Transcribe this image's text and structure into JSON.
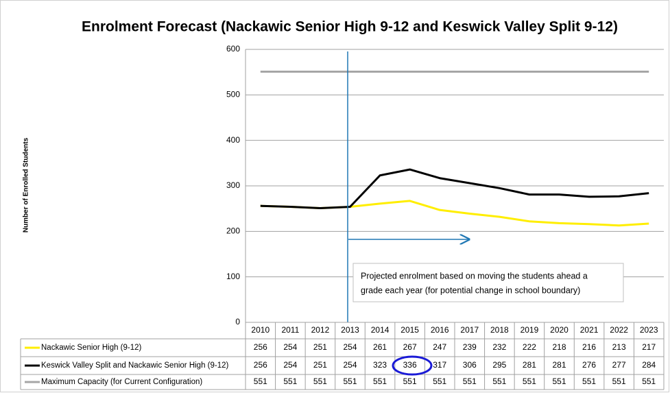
{
  "chart_data": {
    "type": "line",
    "title": "Enrolment Forecast (Nackawic Senior High 9-12 and Keswick Valley Split 9-12)",
    "y_label": "Number of Enrolled Students",
    "annotation": [
      "Projected enrolment based on moving the students ahead a",
      "grade each year (for potential change in school boundary)"
    ],
    "categories": [
      "2010",
      "2011",
      "2012",
      "2013",
      "2014",
      "2015",
      "2016",
      "2017",
      "2018",
      "2019",
      "2020",
      "2021",
      "2022",
      "2023"
    ],
    "series": [
      {
        "name": "Nackawic Senior High (9-12)",
        "color": "#ffee00",
        "values": [
          256,
          254,
          251,
          254,
          261,
          267,
          247,
          239,
          232,
          222,
          218,
          216,
          213,
          217
        ]
      },
      {
        "name": "Keswick Valley Split and Nackawic Senior High (9-12)",
        "color": "#000000",
        "values": [
          256,
          254,
          251,
          254,
          323,
          336,
          317,
          306,
          295,
          281,
          281,
          276,
          277,
          284
        ]
      },
      {
        "name": "Maximum Capacity (for Current Configuration)",
        "color": "#a6a6a6",
        "values": [
          551,
          551,
          551,
          551,
          551,
          551,
          551,
          551,
          551,
          551,
          551,
          551,
          551,
          551
        ]
      }
    ],
    "ylim": [
      0,
      600
    ],
    "yticks": [
      0,
      100,
      200,
      300,
      400,
      500,
      600
    ],
    "grid": true
  }
}
